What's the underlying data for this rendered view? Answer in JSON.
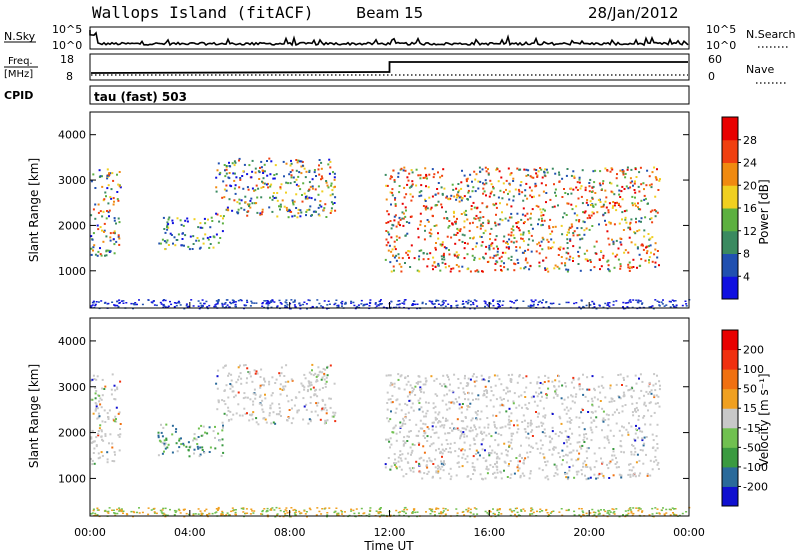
{
  "header": {
    "station": "Wallops Island (fitACF)",
    "beam": "Beam 15",
    "date": "28/Jan/2012"
  },
  "top_panels": {
    "nsky": {
      "label": "N.Sky",
      "right_label": "N.Search",
      "tick_top": "10^5",
      "tick_bottom": "10^0"
    },
    "freq": {
      "label_line1": "Freq.",
      "label_line2": "[MHz]",
      "tick_top": "18",
      "tick_bottom": "8",
      "right_label": "Nave",
      "right_tick_top": "60",
      "right_tick_bottom": "0",
      "step_time_hours": 12.0
    },
    "cpid": {
      "label": "CPID",
      "value": "tau (fast) 503"
    }
  },
  "chart_data": [
    {
      "type": "heatmap",
      "title": "",
      "quantity": "power",
      "xlabel": "",
      "ylabel": "Slant Range [km]",
      "x_ticks": [
        "00:00",
        "04:00",
        "08:00",
        "12:00",
        "16:00",
        "20:00",
        "00:00"
      ],
      "x_range_hours": [
        0,
        24
      ],
      "y_ticks": [
        1000,
        2000,
        3000,
        4000
      ],
      "y_range_km": [
        180,
        4500
      ],
      "colorbar": {
        "label": "Power [dB]",
        "ticks": [
          4,
          8,
          12,
          16,
          20,
          24,
          28
        ],
        "range": [
          0,
          32
        ],
        "colors": [
          "#1010e0",
          "#2050b0",
          "#3a8a60",
          "#5cb040",
          "#f0d020",
          "#f08a10",
          "#f04010",
          "#e80000"
        ]
      },
      "echo_regions_hours_km": [
        {
          "t0": 0.0,
          "t1": 1.2,
          "r0": 1300,
          "r1": 3300,
          "level": "medium"
        },
        {
          "t0": 2.7,
          "t1": 5.3,
          "r0": 1500,
          "r1": 2200,
          "level": "low"
        },
        {
          "t0": 5.0,
          "t1": 9.8,
          "r0": 2200,
          "r1": 3500,
          "level": "medium"
        },
        {
          "t0": 11.8,
          "t1": 22.8,
          "r0": 1000,
          "r1": 3300,
          "level": "high"
        }
      ]
    },
    {
      "type": "heatmap",
      "title": "",
      "quantity": "velocity",
      "xlabel": "Time UT",
      "ylabel": "Slant Range [km]",
      "x_ticks": [
        "00:00",
        "04:00",
        "08:00",
        "12:00",
        "16:00",
        "20:00",
        "00:00"
      ],
      "x_range_hours": [
        0,
        24
      ],
      "y_ticks": [
        1000,
        2000,
        3000,
        4000
      ],
      "y_range_km": [
        180,
        4500
      ],
      "colorbar": {
        "label": "Velocity [m s⁻¹]",
        "ticks": [
          200,
          100,
          50,
          15,
          -15,
          -50,
          -100,
          -200
        ],
        "colors": [
          "#1010d0",
          "#2a6a9a",
          "#3a9a40",
          "#70c050",
          "#c8c8c8",
          "#f0a020",
          "#f07010",
          "#f03010",
          "#e80000"
        ]
      },
      "echo_regions_hours_km": [
        {
          "t0": 0.0,
          "t1": 1.2,
          "r0": 1300,
          "r1": 3300,
          "level": "ground"
        },
        {
          "t0": 2.7,
          "t1": 5.3,
          "r0": 1500,
          "r1": 2200,
          "level": "ionospheric"
        },
        {
          "t0": 5.0,
          "t1": 9.8,
          "r0": 2200,
          "r1": 3500,
          "level": "ground"
        },
        {
          "t0": 11.8,
          "t1": 22.8,
          "r0": 1000,
          "r1": 3300,
          "level": "ground"
        }
      ]
    }
  ]
}
